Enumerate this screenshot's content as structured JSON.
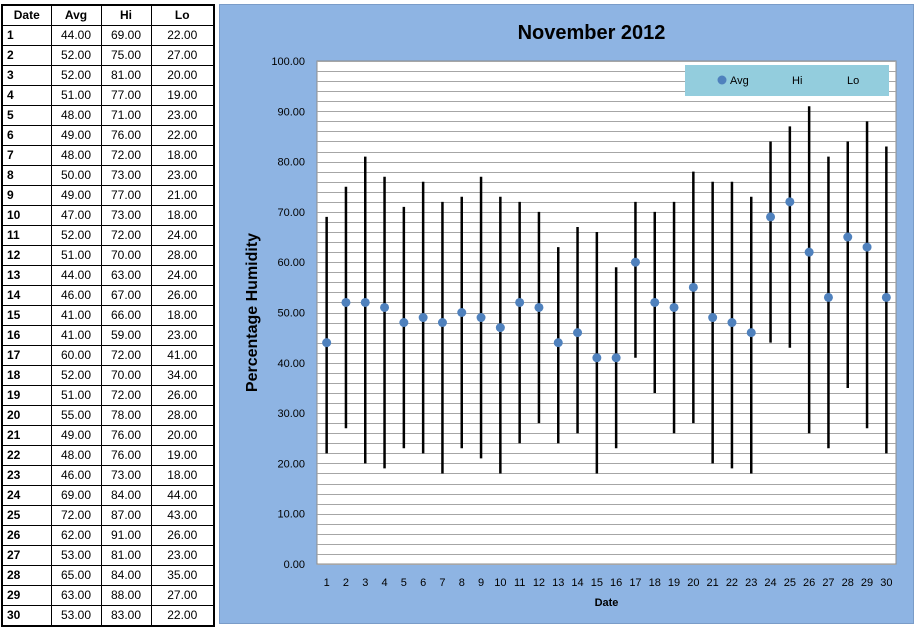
{
  "table": {
    "headers": [
      "Date",
      "Avg",
      "Hi",
      "Lo"
    ],
    "rows": [
      [
        "1",
        "44.00",
        "69.00",
        "22.00"
      ],
      [
        "2",
        "52.00",
        "75.00",
        "27.00"
      ],
      [
        "3",
        "52.00",
        "81.00",
        "20.00"
      ],
      [
        "4",
        "51.00",
        "77.00",
        "19.00"
      ],
      [
        "5",
        "48.00",
        "71.00",
        "23.00"
      ],
      [
        "6",
        "49.00",
        "76.00",
        "22.00"
      ],
      [
        "7",
        "48.00",
        "72.00",
        "18.00"
      ],
      [
        "8",
        "50.00",
        "73.00",
        "23.00"
      ],
      [
        "9",
        "49.00",
        "77.00",
        "21.00"
      ],
      [
        "10",
        "47.00",
        "73.00",
        "18.00"
      ],
      [
        "11",
        "52.00",
        "72.00",
        "24.00"
      ],
      [
        "12",
        "51.00",
        "70.00",
        "28.00"
      ],
      [
        "13",
        "44.00",
        "63.00",
        "24.00"
      ],
      [
        "14",
        "46.00",
        "67.00",
        "26.00"
      ],
      [
        "15",
        "41.00",
        "66.00",
        "18.00"
      ],
      [
        "16",
        "41.00",
        "59.00",
        "23.00"
      ],
      [
        "17",
        "60.00",
        "72.00",
        "41.00"
      ],
      [
        "18",
        "52.00",
        "70.00",
        "34.00"
      ],
      [
        "19",
        "51.00",
        "72.00",
        "26.00"
      ],
      [
        "20",
        "55.00",
        "78.00",
        "28.00"
      ],
      [
        "21",
        "49.00",
        "76.00",
        "20.00"
      ],
      [
        "22",
        "48.00",
        "76.00",
        "19.00"
      ],
      [
        "23",
        "46.00",
        "73.00",
        "18.00"
      ],
      [
        "24",
        "69.00",
        "84.00",
        "44.00"
      ],
      [
        "25",
        "72.00",
        "87.00",
        "43.00"
      ],
      [
        "26",
        "62.00",
        "91.00",
        "26.00"
      ],
      [
        "27",
        "53.00",
        "81.00",
        "23.00"
      ],
      [
        "28",
        "65.00",
        "84.00",
        "35.00"
      ],
      [
        "29",
        "63.00",
        "88.00",
        "27.00"
      ],
      [
        "30",
        "53.00",
        "83.00",
        "22.00"
      ]
    ]
  },
  "chart_data": {
    "type": "scatter",
    "title": "November 2012",
    "xlabel": "Date",
    "ylabel": "Percentage Humidity",
    "ylim": [
      0,
      100
    ],
    "y_tick_step": 2,
    "y_tick_labels": [
      "0.00",
      "10.00",
      "20.00",
      "30.00",
      "40.00",
      "50.00",
      "60.00",
      "70.00",
      "80.00",
      "90.00",
      "100.00"
    ],
    "grid": true,
    "legend_position": "top-right",
    "x": [
      1,
      2,
      3,
      4,
      5,
      6,
      7,
      8,
      9,
      10,
      11,
      12,
      13,
      14,
      15,
      16,
      17,
      18,
      19,
      20,
      21,
      22,
      23,
      24,
      25,
      26,
      27,
      28,
      29,
      30
    ],
    "series": [
      {
        "name": "Avg",
        "marker": "circle",
        "color": "#4f81bd",
        "values": [
          44,
          52,
          52,
          51,
          48,
          49,
          48,
          50,
          49,
          47,
          52,
          51,
          44,
          46,
          41,
          41,
          60,
          52,
          51,
          55,
          49,
          48,
          46,
          69,
          72,
          62,
          53,
          65,
          63,
          53
        ]
      },
      {
        "name": "Hi",
        "marker": "none",
        "values": [
          69,
          75,
          81,
          77,
          71,
          76,
          72,
          73,
          77,
          73,
          72,
          70,
          63,
          67,
          66,
          59,
          72,
          70,
          72,
          78,
          76,
          76,
          73,
          84,
          87,
          91,
          81,
          84,
          88,
          83
        ]
      },
      {
        "name": "Lo",
        "marker": "none",
        "values": [
          22,
          27,
          20,
          19,
          23,
          22,
          18,
          23,
          21,
          18,
          24,
          28,
          24,
          26,
          18,
          23,
          41,
          34,
          26,
          28,
          20,
          19,
          18,
          44,
          43,
          26,
          23,
          35,
          27,
          22
        ]
      }
    ],
    "hi_lo_line_color": "#000000",
    "gridline_color": "#a6a6a6",
    "plot_background": "#ffffff",
    "legend_background": "#93cddd"
  }
}
